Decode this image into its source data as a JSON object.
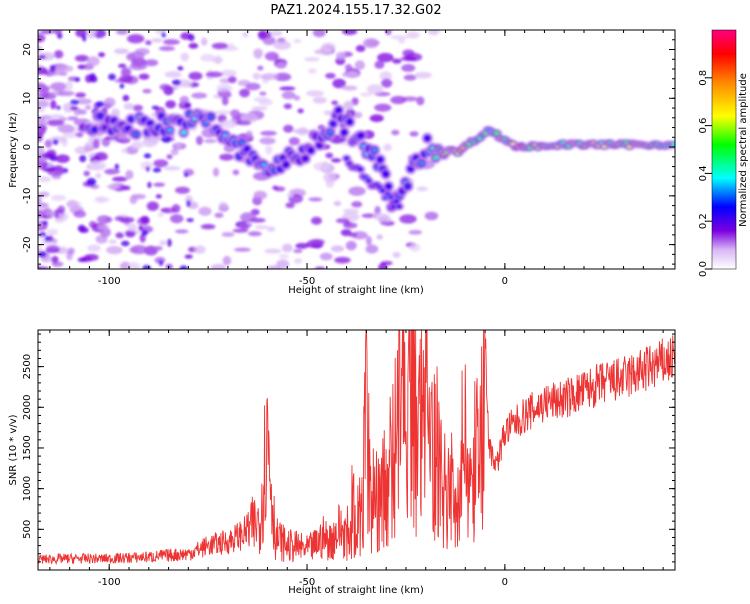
{
  "title": "PAZ1.2024.155.17.32.G02",
  "chart_data": [
    {
      "type": "heatmap",
      "xlabel": "Height of straight line (km)",
      "ylabel": "Frequency (Hz)",
      "xlim": [
        -118,
        43
      ],
      "ylim": [
        -25,
        24
      ],
      "xticks": [
        -100,
        -50,
        0
      ],
      "yticks": [
        -20,
        -10,
        0,
        10,
        20
      ],
      "colorbar": {
        "label": "Normalized spectral amplitude",
        "range": [
          0,
          1
        ],
        "ticks": [
          0.0,
          0.2,
          0.4,
          0.6,
          0.8
        ],
        "colors": [
          "#ffffff",
          "#7b00e0",
          "#0000ff",
          "#00ffff",
          "#00ff00",
          "#ffff00",
          "#ff8800",
          "#ff0000",
          "#ff00aa"
        ]
      },
      "ridge": [
        {
          "x": -100,
          "y": 4.5,
          "amp": 0.25
        },
        {
          "x": -90,
          "y": 4.5,
          "amp": 0.3
        },
        {
          "x": -80,
          "y": 5,
          "amp": 0.35
        },
        {
          "x": -75,
          "y": 5.5,
          "amp": 0.35
        },
        {
          "x": -68,
          "y": 0,
          "amp": 0.3
        },
        {
          "x": -60,
          "y": -4.5,
          "amp": 0.3
        },
        {
          "x": -52,
          "y": -2,
          "amp": 0.25
        },
        {
          "x": -42,
          "y": 6,
          "amp": 0.3
        },
        {
          "x": -32,
          "y": -3,
          "amp": 0.3
        },
        {
          "x": -28,
          "y": -12,
          "amp": 0.25
        },
        {
          "x": -20,
          "y": 0,
          "amp": 0.35
        },
        {
          "x": -12,
          "y": -1,
          "amp": 0.75
        },
        {
          "x": -4,
          "y": 3.5,
          "amp": 0.4
        },
        {
          "x": 3,
          "y": 0,
          "amp": 0.75
        },
        {
          "x": 15,
          "y": 0.5,
          "amp": 0.6
        },
        {
          "x": 30,
          "y": 0.5,
          "amp": 0.6
        },
        {
          "x": 43,
          "y": 0.5,
          "amp": 0.55
        }
      ]
    },
    {
      "type": "line",
      "xlabel": "Height of straight line (km)",
      "ylabel": "SNR (10 * v/v)",
      "xlim": [
        -118,
        43
      ],
      "ylim": [
        0,
        2950
      ],
      "xticks": [
        -100,
        -50,
        0
      ],
      "yticks": [
        500,
        1000,
        1500,
        2000,
        2500
      ],
      "line_color": "#ee3333",
      "series": [
        {
          "x": [
            -118,
            -110,
            -100,
            -90,
            -80,
            -75,
            -70,
            -66,
            -62,
            -60,
            -58,
            -55,
            -52,
            -50,
            -48,
            -46,
            -44,
            -42,
            -40,
            -38,
            -36,
            -35,
            -34,
            -32,
            -30,
            -28,
            -26,
            -25,
            -24,
            -22,
            -20,
            -19,
            -18,
            -16,
            -14,
            -12,
            -10,
            -8,
            -6,
            -5,
            -4,
            -2,
            0,
            5,
            10,
            15,
            20,
            25,
            30,
            35,
            40,
            43
          ],
          "y": [
            130,
            140,
            140,
            160,
            200,
            300,
            350,
            450,
            600,
            1700,
            400,
            300,
            280,
            250,
            300,
            400,
            350,
            500,
            450,
            600,
            700,
            2350,
            800,
            900,
            1200,
            1000,
            2900,
            1100,
            2850,
            1300,
            2750,
            1200,
            1500,
            1100,
            1000,
            1150,
            1250,
            1350,
            1450,
            2950,
            1500,
            1300,
            1700,
            1900,
            2050,
            2100,
            2200,
            2300,
            2350,
            2450,
            2550,
            2600
          ]
        }
      ]
    }
  ]
}
